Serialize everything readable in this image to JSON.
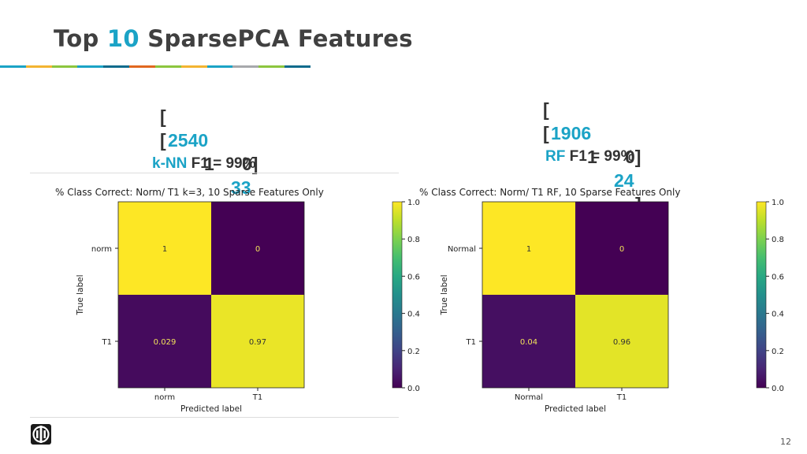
{
  "slide": {
    "title_prefix": "Top",
    "title_number": "10",
    "title_suffix": "SparsePCA Features",
    "page_number": "12",
    "accent_color": "#1ba3c6",
    "stripe_colors": [
      "#1ba3c6",
      "#f3b431",
      "#8cc63e",
      "#1ba3c6",
      "#0d6b8c",
      "#e0671f",
      "#8cc63e",
      "#f3b431",
      "#1ba3c6",
      "#a7a9ac",
      "#8cc63e",
      "#0d6b8c"
    ]
  },
  "left_panel": {
    "matrix": {
      "r0_open": "[",
      "r0_a": "2540",
      "r0_b": "0]",
      "r1_open": "[",
      "r1_a": "1",
      "r1_b": "33",
      "r1_close": "]"
    },
    "model_name": "k-NN",
    "metric": "F1 = 99%"
  },
  "right_panel": {
    "matrix": {
      "r0_open": "[",
      "r0_a": "1906",
      "r0_b": "0]",
      "r1_open": "[",
      "r1_a": "1",
      "r1_b": "24",
      "r1_close": "]"
    },
    "model_name": "RF",
    "metric": "F1 = 99%"
  },
  "chart_data": [
    {
      "type": "heatmap",
      "title": "% Class Correct: Norm/ T1    k=3, 10 Sparse Features Only",
      "xlabel": "Predicted label",
      "ylabel": "True label",
      "x_categories": [
        "norm",
        "T1"
      ],
      "y_categories": [
        "norm",
        "T1"
      ],
      "values": [
        [
          1,
          0
        ],
        [
          0.029,
          0.97
        ]
      ],
      "value_labels": [
        [
          "1",
          "0"
        ],
        [
          "0.029",
          "0.97"
        ]
      ],
      "colorbar": {
        "ticks": [
          "0.0",
          "0.2",
          "0.4",
          "0.6",
          "0.8",
          "1.0"
        ],
        "range": [
          0,
          1
        ],
        "colormap": "viridis"
      }
    },
    {
      "type": "heatmap",
      "title": "% Class Correct: Norm/ T1    RF, 10 Sparse Features Only",
      "xlabel": "Predicted label",
      "ylabel": "True label",
      "x_categories": [
        "Normal",
        "T1"
      ],
      "y_categories": [
        "Normal",
        "T1"
      ],
      "values": [
        [
          1,
          0
        ],
        [
          0.04,
          0.96
        ]
      ],
      "value_labels": [
        [
          "1",
          "0"
        ],
        [
          "0.04",
          "0.96"
        ]
      ],
      "colorbar": {
        "ticks": [
          "0.0",
          "0.2",
          "0.4",
          "0.6",
          "0.8",
          "1.0"
        ],
        "range": [
          0,
          1
        ],
        "colormap": "viridis"
      }
    }
  ]
}
